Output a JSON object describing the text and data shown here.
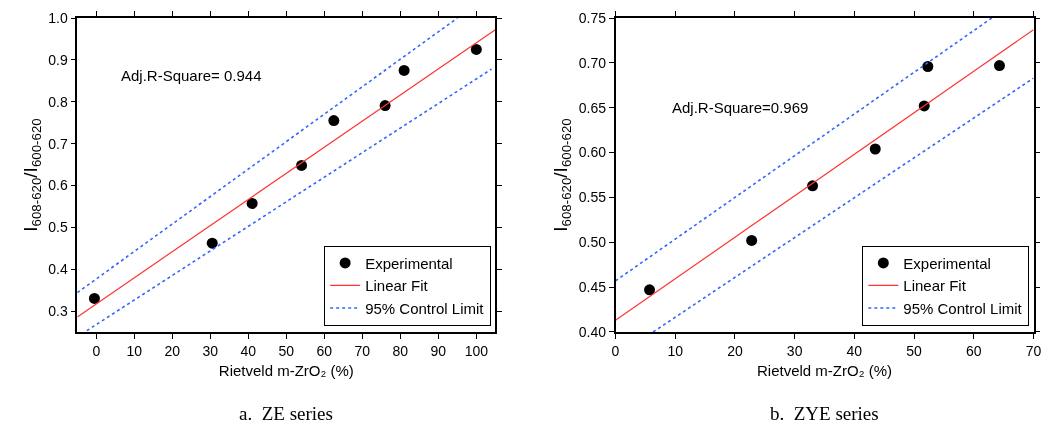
{
  "chart_data": [
    {
      "type": "scatter",
      "xlabel": "Rietveld m-ZrO₂ (%)",
      "ylabel": "I$_{608-620}$/I$_{600-620}$",
      "xlim": [
        -5,
        105
      ],
      "ylim": [
        0.25,
        1.0
      ],
      "xticks": [
        0,
        10,
        20,
        30,
        40,
        50,
        60,
        70,
        80,
        90,
        100
      ],
      "yticks": [
        0.3,
        0.4,
        0.5,
        0.6,
        0.7,
        0.8,
        0.9,
        {
          "value": 1.0,
          "label": "1.0"
        }
      ],
      "grid": false,
      "legend": "bottom right",
      "marker": "circle",
      "annotations": [
        "Adj.R-Square= 0.944",
        "a.  ZE series"
      ],
      "series": [
        {
          "name": "Experimental",
          "color": "#000000",
          "x": [
            -0.5,
            30.5,
            41,
            54,
            62.5,
            76,
            81,
            100
          ],
          "values": [
            0.33,
            0.462,
            0.557,
            0.648,
            0.755,
            0.791,
            0.875,
            0.925
          ]
        },
        {
          "name": "Linear Fit",
          "type": "line",
          "color": "#ff3333",
          "line_style": "solid",
          "marker": "none",
          "x": [
            -5,
            105
          ],
          "values": [
            0.286,
            0.972
          ]
        },
        {
          "name": "95% Control Limit",
          "type": "line",
          "color": "#3366ff",
          "line_style": "dotted",
          "marker": "none",
          "x": [
            -5,
            95
          ],
          "values": [
            0.344,
            1.0
          ]
        },
        {
          "type": "line",
          "color": "#3366ff",
          "line_style": "dotted",
          "marker": "none",
          "x": [
            -2.5,
            104
          ],
          "values": [
            0.253,
            0.878
          ]
        }
      ]
    },
    {
      "type": "scatter",
      "xlabel": "Rietveld m-ZrO₂ (%)",
      "ylabel": "I$_{608-620}$/I$_{600-620}$",
      "xlim": [
        0,
        70
      ],
      "ylim": [
        0.4,
        0.75
      ],
      "xticks": [
        0,
        10,
        20,
        30,
        40,
        50,
        60,
        70
      ],
      "yticks": [
        {
          "value": 0.4,
          "label": "0.40"
        },
        {
          "value": 0.45,
          "label": "0.45"
        },
        {
          "value": 0.5,
          "label": "0.50"
        },
        {
          "value": 0.55,
          "label": "0.55"
        },
        {
          "value": 0.6,
          "label": "0.60"
        },
        {
          "value": 0.65,
          "label": "0.65"
        },
        {
          "value": 0.7,
          "label": "0.70"
        },
        {
          "value": 0.75,
          "label": "0.75"
        }
      ],
      "grid": false,
      "legend": "bottom right",
      "marker": "circle",
      "annotations": [
        "Adj.R-Square=0.969",
        "b.  ZYE series"
      ],
      "series": [
        {
          "name": "Experimental",
          "color": "#000000",
          "x": [
            5.7,
            22.8,
            33,
            43.5,
            51.7,
            52.3,
            64.3
          ],
          "values": [
            0.447,
            0.502,
            0.563,
            0.604,
            0.652,
            0.696,
            0.697
          ]
        },
        {
          "name": "Linear Fit",
          "type": "line",
          "color": "#ff3333",
          "line_style": "solid",
          "marker": "none",
          "x": [
            0,
            70
          ],
          "values": [
            0.413,
            0.737
          ]
        },
        {
          "name": "95% Control Limit",
          "type": "line",
          "color": "#3366ff",
          "line_style": "dotted",
          "marker": "none",
          "x": [
            0,
            63
          ],
          "values": [
            0.457,
            0.75
          ]
        },
        {
          "type": "line",
          "color": "#3366ff",
          "line_style": "dotted",
          "marker": "none",
          "x": [
            6.3,
            70
          ],
          "values": [
            0.4,
            0.683
          ]
        }
      ]
    }
  ]
}
